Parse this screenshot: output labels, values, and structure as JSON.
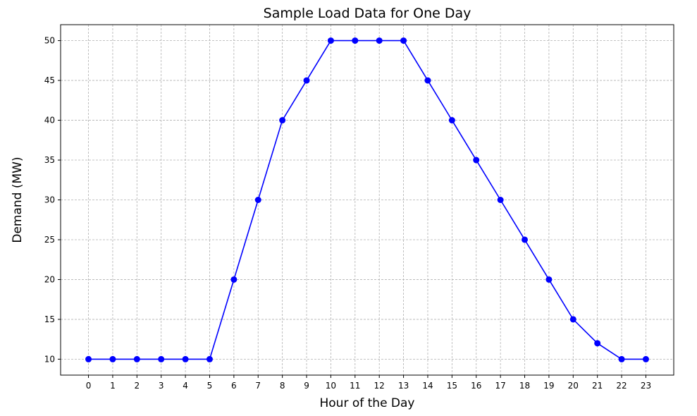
{
  "chart_data": {
    "type": "line",
    "title": "Sample Load Data for One Day",
    "xlabel": "Hour of the Day",
    "ylabel": "Demand (MW)",
    "x": [
      0,
      1,
      2,
      3,
      4,
      5,
      6,
      7,
      8,
      9,
      10,
      11,
      12,
      13,
      14,
      15,
      16,
      17,
      18,
      19,
      20,
      21,
      22,
      23
    ],
    "series": [
      {
        "name": "Demand",
        "color": "#0000ff",
        "marker": "circle",
        "values": [
          10,
          10,
          10,
          10,
          10,
          10,
          20,
          30,
          40,
          45,
          50,
          50,
          50,
          50,
          45,
          40,
          35,
          30,
          25,
          20,
          15,
          12,
          10,
          10
        ]
      }
    ],
    "xticks": [
      0,
      1,
      2,
      3,
      4,
      5,
      6,
      7,
      8,
      9,
      10,
      11,
      12,
      13,
      14,
      15,
      16,
      17,
      18,
      19,
      20,
      21,
      22,
      23
    ],
    "yticks": [
      10,
      15,
      20,
      25,
      30,
      35,
      40,
      45,
      50
    ],
    "xlim": [
      -1.15,
      24.15
    ],
    "ylim": [
      8,
      52
    ],
    "grid": true
  }
}
